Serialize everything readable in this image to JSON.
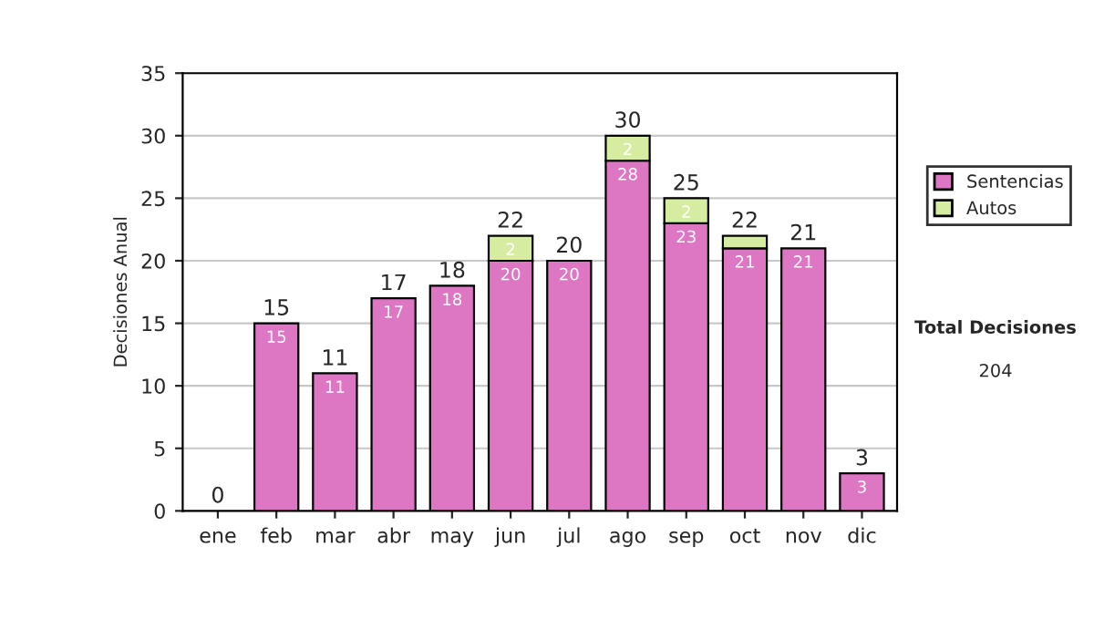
{
  "chart_data": {
    "type": "bar",
    "stacked": true,
    "ylabel": "Decisiones Anual",
    "categories": [
      "ene",
      "feb",
      "mar",
      "abr",
      "may",
      "jun",
      "jul",
      "ago",
      "sep",
      "oct",
      "nov",
      "dic"
    ],
    "series": [
      {
        "name": "Sentencias",
        "color": "#dd77c4",
        "values": [
          0,
          15,
          11,
          17,
          18,
          20,
          20,
          28,
          23,
          21,
          21,
          3
        ],
        "value_labels": [
          null,
          "15",
          "11",
          "17",
          "18",
          "20",
          "20",
          "28",
          "23",
          "21",
          "21",
          "3"
        ]
      },
      {
        "name": "Autos",
        "color": "#d6eca0",
        "values": [
          0,
          0,
          0,
          0,
          0,
          2,
          0,
          2,
          2,
          1,
          0,
          0
        ],
        "value_labels": [
          null,
          null,
          null,
          null,
          null,
          "2",
          null,
          "2",
          "2",
          null,
          null,
          null
        ]
      }
    ],
    "totals": [
      "0",
      "15",
      "11",
      "17",
      "18",
      "22",
      "20",
      "30",
      "25",
      "22",
      "21",
      "3"
    ],
    "ylim": [
      0,
      35
    ],
    "yticks": [
      0,
      5,
      10,
      15,
      20,
      25,
      30,
      35
    ],
    "grid": "y",
    "legend": "right",
    "annotations": [
      "Total Decisiones",
      "204"
    ]
  }
}
